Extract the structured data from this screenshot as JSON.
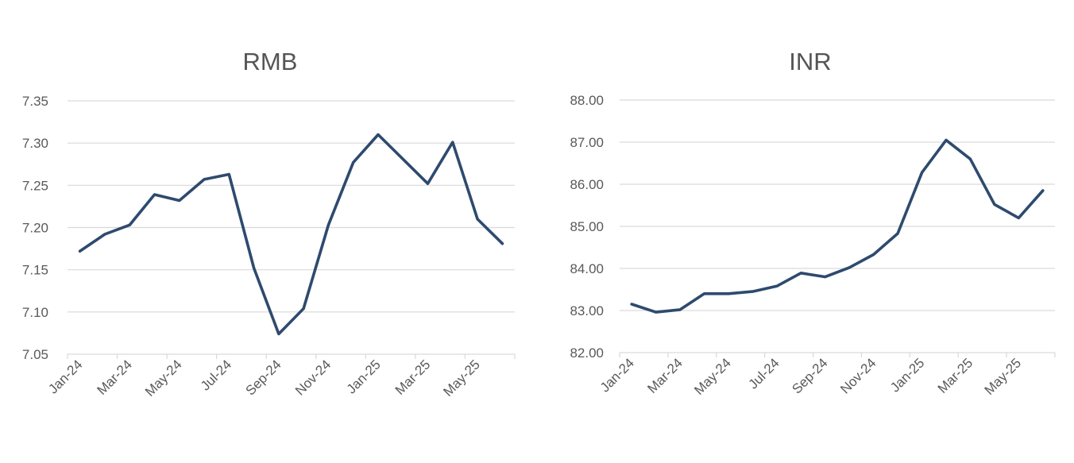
{
  "colors": {
    "series": "#2e4a6e",
    "grid": "#d9d9d9",
    "text": "#595959",
    "title": "#555555"
  },
  "chart_data": [
    {
      "type": "line",
      "title": "RMB",
      "xlabel": "",
      "ylabel": "",
      "x": [
        "Jan-24",
        "Feb-24",
        "Mar-24",
        "Apr-24",
        "May-24",
        "Jun-24",
        "Jul-24",
        "Aug-24",
        "Sep-24",
        "Oct-24",
        "Nov-24",
        "Dec-24",
        "Jan-25",
        "Feb-25",
        "Mar-25",
        "Apr-25",
        "May-25",
        "Jun-25"
      ],
      "x_tick_labels": [
        "Jan-24",
        "Mar-24",
        "May-24",
        "Jul-24",
        "Sep-24",
        "Nov-24",
        "Jan-25",
        "Mar-25",
        "May-25"
      ],
      "values": [
        7.172,
        7.192,
        7.203,
        7.239,
        7.232,
        7.257,
        7.263,
        7.152,
        7.074,
        7.104,
        7.203,
        7.277,
        7.31,
        7.281,
        7.252,
        7.301,
        7.21,
        7.181
      ],
      "ylim": [
        7.05,
        7.35
      ],
      "y_ticks": [
        "7.05",
        "7.10",
        "7.15",
        "7.20",
        "7.25",
        "7.30",
        "7.35"
      ],
      "grid": true,
      "legend": "none"
    },
    {
      "type": "line",
      "title": "INR",
      "xlabel": "",
      "ylabel": "",
      "x": [
        "Jan-24",
        "Feb-24",
        "Mar-24",
        "Apr-24",
        "May-24",
        "Jun-24",
        "Jul-24",
        "Aug-24",
        "Sep-24",
        "Oct-24",
        "Nov-24",
        "Dec-24",
        "Jan-25",
        "Feb-25",
        "Mar-25",
        "Apr-25",
        "May-25",
        "Jun-25"
      ],
      "x_tick_labels": [
        "Jan-24",
        "Mar-24",
        "May-24",
        "Jul-24",
        "Sep-24",
        "Nov-24",
        "Jan-25",
        "Mar-25",
        "May-25"
      ],
      "values": [
        83.15,
        82.96,
        83.02,
        83.4,
        83.4,
        83.45,
        83.58,
        83.89,
        83.8,
        84.02,
        84.33,
        84.83,
        86.28,
        87.05,
        86.6,
        85.52,
        85.2,
        85.85
      ],
      "ylim": [
        82.0,
        88.0
      ],
      "y_ticks": [
        "82.00",
        "83.00",
        "84.00",
        "85.00",
        "86.00",
        "87.00",
        "88.00"
      ],
      "grid": true,
      "legend": "none"
    }
  ]
}
